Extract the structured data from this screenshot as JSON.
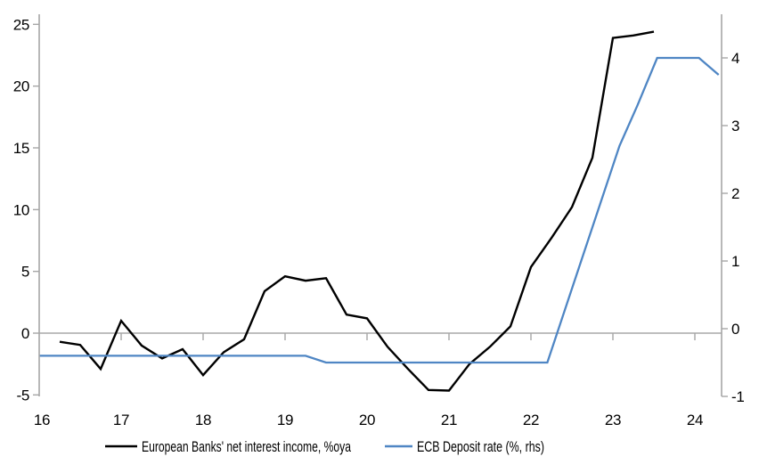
{
  "chart_data": {
    "type": "line",
    "title": "",
    "x_axis": {
      "label": "",
      "min": 16,
      "max": 24.33,
      "ticks": [
        16,
        17,
        18,
        19,
        20,
        21,
        22,
        23,
        24
      ],
      "tick_labels": [
        "16",
        "17",
        "18",
        "19",
        "20",
        "21",
        "22",
        "23",
        "24"
      ]
    },
    "y_axis_left": {
      "label": "",
      "min": -5,
      "max": 26,
      "ticks": [
        -5,
        0,
        5,
        10,
        15,
        20,
        25
      ],
      "tick_labels": [
        "-5",
        "0",
        "5",
        "10",
        "15",
        "20",
        "25"
      ]
    },
    "y_axis_right": {
      "label": "",
      "min": -1,
      "max": 4.65,
      "ticks": [
        -1,
        0,
        1,
        2,
        3,
        4
      ],
      "tick_labels": [
        "-1",
        "0",
        "1",
        "2",
        "3",
        "4"
      ]
    },
    "grid": "zero-line-only-with-year-ticks",
    "legend_position": "bottom-center",
    "series": [
      {
        "name": "European Banks' net interest income, %oya",
        "axis": "left",
        "color": "#000000",
        "points": [
          [
            16.25,
            -0.7
          ],
          [
            16.5,
            -0.95
          ],
          [
            16.75,
            -2.9
          ],
          [
            17.0,
            1.0
          ],
          [
            17.25,
            -1.0
          ],
          [
            17.5,
            -2.05
          ],
          [
            17.75,
            -1.3
          ],
          [
            18.0,
            -3.4
          ],
          [
            18.25,
            -1.55
          ],
          [
            18.5,
            -0.5
          ],
          [
            18.75,
            3.4
          ],
          [
            19.0,
            4.6
          ],
          [
            19.25,
            4.25
          ],
          [
            19.5,
            4.45
          ],
          [
            19.75,
            1.5
          ],
          [
            20.0,
            1.2
          ],
          [
            20.25,
            -1.1
          ],
          [
            20.5,
            -2.9
          ],
          [
            20.75,
            -4.6
          ],
          [
            21.0,
            -4.65
          ],
          [
            21.25,
            -2.5
          ],
          [
            21.5,
            -1.1
          ],
          [
            21.75,
            0.55
          ],
          [
            22.0,
            5.35
          ],
          [
            22.25,
            7.7
          ],
          [
            22.5,
            10.2
          ],
          [
            22.75,
            14.2
          ],
          [
            23.0,
            23.9
          ],
          [
            23.25,
            24.1
          ],
          [
            23.5,
            24.4
          ]
        ]
      },
      {
        "name": "ECB Deposit rate (%, rhs)",
        "axis": "right",
        "color": "#4f86c4",
        "points": [
          [
            16.0,
            -0.4
          ],
          [
            19.25,
            -0.4
          ],
          [
            19.5,
            -0.5
          ],
          [
            22.2,
            -0.5
          ],
          [
            23.08,
            2.7
          ],
          [
            23.3,
            3.3
          ],
          [
            23.54,
            4.0
          ],
          [
            24.05,
            4.0
          ],
          [
            24.29,
            3.75
          ]
        ]
      }
    ]
  },
  "colors": {
    "background": "#ffffff",
    "axis": "#a6a6a6",
    "text": "#000000",
    "nii_line": "#000000",
    "ecb_line": "#4f86c4"
  }
}
